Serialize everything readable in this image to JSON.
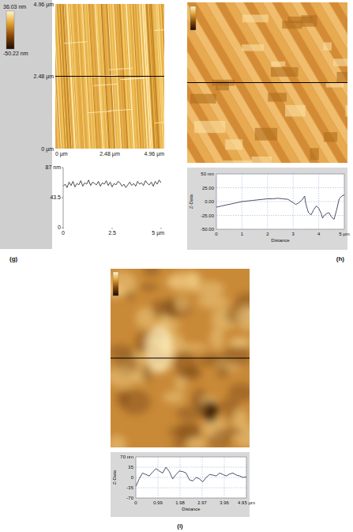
{
  "chart_data": [
    {
      "type": "line",
      "panel": "(g)",
      "image": {
        "colorbar": {
          "range": [
            -50.22,
            36.03
          ],
          "ticks": [
            {
              "value": 36.03,
              "label": "36.03 nm"
            },
            {
              "value": -50.22,
              "label": "-50.22 nm"
            }
          ]
        },
        "xlim": [
          0,
          4.96
        ],
        "ylim": [
          0,
          4.96
        ],
        "xticks": [
          {
            "value": 0,
            "label": "0 µm"
          },
          {
            "value": 2.48,
            "label": "2.48 µm"
          },
          {
            "value": 4.96,
            "label": "4.96 µm"
          }
        ],
        "yticks": [
          {
            "value": 0,
            "label": "0 µm"
          },
          {
            "value": 2.48,
            "label": "2.48 µm"
          },
          {
            "value": 4.96,
            "label": "4.96 µm"
          }
        ],
        "profile_y": 2.48
      },
      "x": [
        0,
        0.1,
        0.2,
        0.3,
        0.4,
        0.5,
        0.6,
        0.7,
        0.8,
        0.9,
        1.0,
        1.1,
        1.2,
        1.3,
        1.4,
        1.5,
        1.6,
        1.7,
        1.8,
        1.9,
        2.0,
        2.1,
        2.2,
        2.3,
        2.4,
        2.5,
        2.6,
        2.7,
        2.8,
        2.9,
        3.0,
        3.1,
        3.2,
        3.3,
        3.4,
        3.5,
        3.6,
        3.7,
        3.8,
        3.9,
        4.0,
        4.1,
        4.2,
        4.3,
        4.4,
        4.5,
        4.6,
        4.7,
        4.8,
        4.9,
        5.0
      ],
      "values": [
        60,
        63,
        58,
        66,
        61,
        67,
        59,
        64,
        62,
        68,
        60,
        65,
        63,
        69,
        61,
        66,
        64,
        62,
        67,
        60,
        65,
        63,
        68,
        61,
        66,
        59,
        64,
        62,
        67,
        65,
        60,
        63,
        58,
        62,
        66,
        61,
        64,
        60,
        67,
        63,
        65,
        61,
        68,
        64,
        62,
        66,
        60,
        67,
        63,
        69,
        65
      ],
      "xlim": [
        0,
        5
      ],
      "ylim": [
        0,
        87
      ],
      "xticks": [
        0,
        2.5,
        {
          "value": 5,
          "label": "5 µm"
        }
      ],
      "yticks": [
        0,
        43.5,
        {
          "value": 87,
          "label": "87 nm"
        }
      ],
      "grid": false,
      "color": "#3a3a3a"
    },
    {
      "type": "line",
      "panel": "(h)",
      "x_label": "Distance",
      "y_label": "Z-Data",
      "x": [
        0,
        0.2,
        0.4,
        0.6,
        0.8,
        1.0,
        1.2,
        1.4,
        1.6,
        1.8,
        2.0,
        2.2,
        2.4,
        2.6,
        2.8,
        3.0,
        3.1,
        3.2,
        3.35,
        3.45,
        3.5,
        3.6,
        3.7,
        3.8,
        3.9,
        4.0,
        4.1,
        4.15,
        4.2,
        4.3,
        4.4,
        4.5,
        4.6,
        4.7,
        4.8,
        4.9,
        5.0
      ],
      "values": [
        -10,
        -8,
        -6,
        -4,
        -2,
        0,
        1,
        2,
        3,
        4,
        5,
        5,
        6,
        5,
        4,
        -2,
        -5,
        -3,
        3,
        10,
        -5,
        -20,
        -24,
        -15,
        -8,
        -12,
        -22,
        -30,
        -26,
        -22,
        -20,
        -28,
        -32,
        -15,
        5,
        10,
        12
      ],
      "xlim": [
        0,
        5
      ],
      "ylim": [
        -50,
        50
      ],
      "xticks": [
        0,
        1,
        2,
        3,
        4,
        {
          "value": 5,
          "label": "5 µm"
        }
      ],
      "yticks": [
        {
          "value": -50,
          "label": "-50.00"
        },
        {
          "value": -25,
          "label": "-25.00"
        },
        {
          "value": 0,
          "label": "0.00"
        },
        {
          "value": 25,
          "label": "25.00"
        },
        {
          "value": 50,
          "label": "50 nm"
        }
      ],
      "grid": true,
      "color": "#3a3a5a"
    },
    {
      "type": "line",
      "panel": "(i)",
      "x_label": "Distance",
      "y_label": "Z-Data",
      "x": [
        0,
        0.15,
        0.3,
        0.45,
        0.6,
        0.75,
        0.9,
        1.05,
        1.2,
        1.35,
        1.5,
        1.65,
        1.8,
        1.95,
        2.1,
        2.25,
        2.4,
        2.55,
        2.7,
        2.85,
        3.0,
        3.15,
        3.3,
        3.45,
        3.6,
        3.75,
        3.9,
        4.05,
        4.2,
        4.35,
        4.5,
        4.65,
        4.8,
        4.95
      ],
      "values": [
        -30,
        -5,
        15,
        10,
        5,
        18,
        30,
        22,
        15,
        35,
        20,
        -5,
        10,
        22,
        20,
        15,
        -8,
        -12,
        0,
        -5,
        -15,
        0,
        10,
        8,
        5,
        15,
        10,
        5,
        12,
        15,
        8,
        5,
        0,
        2
      ],
      "xlim": [
        0,
        4.95
      ],
      "ylim": [
        -70,
        70
      ],
      "xticks": [
        0,
        0.99,
        1.98,
        2.97,
        3.96,
        {
          "value": 4.95,
          "label": "4.95 µm"
        }
      ],
      "yticks": [
        -70,
        -35,
        0,
        35,
        {
          "value": 70,
          "label": "70 nm"
        }
      ],
      "grid": true,
      "color": "#3a3a5a"
    }
  ]
}
